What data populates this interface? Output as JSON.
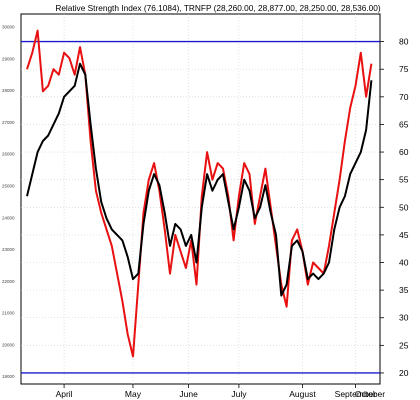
{
  "chart_data": {
    "type": "line",
    "title": "Relative Strength Index (76.1084), TRNFP (28,260.00, 28,877.00, 28,250.00, 28,536.00)",
    "right_axis": {
      "ticks": [
        20,
        25,
        30,
        35,
        40,
        45,
        50,
        55,
        60,
        65,
        70,
        75,
        80
      ],
      "range": [
        18,
        85
      ]
    },
    "left_axis": {
      "ticks": [
        "19000",
        "20000",
        "21000",
        "22000",
        "23000",
        "24000",
        "25000",
        "26000",
        "27000",
        "28000",
        "29000",
        "30000"
      ],
      "range": [
        18750,
        30400
      ]
    },
    "x_months": [
      "April",
      "May",
      "June",
      "July",
      "August",
      "September",
      "October"
    ],
    "x_range": [
      0,
      131
    ],
    "month_positions": [
      14,
      40,
      61,
      80,
      104,
      124,
      140
    ],
    "reference_lines": [
      80,
      20
    ],
    "grid": true,
    "series": [
      {
        "color": "#e81010",
        "axis": "right",
        "x": [
          0,
          2,
          4,
          6,
          8,
          10,
          12,
          14,
          16,
          18,
          20,
          22,
          24,
          26,
          28,
          30,
          32,
          34,
          36,
          38,
          40,
          42,
          44,
          46,
          48,
          50,
          52,
          54,
          56,
          58,
          60,
          62,
          64,
          66,
          68,
          70,
          72,
          74,
          76,
          78,
          80,
          82,
          84,
          86,
          88,
          90,
          92,
          94,
          96,
          98,
          100,
          102,
          104,
          106,
          108,
          110,
          112,
          114,
          116,
          118,
          120,
          122,
          124,
          126,
          128,
          130
        ],
        "values": [
          75,
          78,
          82,
          71,
          72,
          75,
          74,
          78,
          77,
          74,
          79,
          74,
          62,
          53,
          49,
          46,
          43,
          38,
          33,
          27,
          23,
          36,
          49,
          55,
          58,
          53,
          46,
          38,
          45,
          42,
          39,
          44,
          36,
          52,
          60,
          55,
          58,
          57,
          52,
          44,
          52,
          58,
          56,
          47,
          52,
          57,
          50,
          43,
          36,
          32,
          44,
          46,
          42,
          36,
          40,
          39,
          38,
          43,
          49,
          55,
          62,
          68,
          72,
          78,
          70,
          76
        ]
      },
      {
        "color": "#000000",
        "axis": "right",
        "x": [
          0,
          2,
          4,
          6,
          8,
          10,
          12,
          14,
          16,
          18,
          20,
          22,
          24,
          26,
          28,
          30,
          32,
          34,
          36,
          38,
          40,
          42,
          44,
          46,
          48,
          50,
          52,
          54,
          56,
          58,
          60,
          62,
          64,
          66,
          68,
          70,
          72,
          74,
          76,
          78,
          80,
          82,
          84,
          86,
          88,
          90,
          92,
          94,
          96,
          98,
          100,
          102,
          104,
          106,
          108,
          110,
          112,
          114,
          116,
          118,
          120,
          122,
          124,
          126,
          128,
          130
        ],
        "values": [
          52,
          56,
          60,
          62,
          63,
          65,
          67,
          70,
          71,
          72,
          76,
          74,
          65,
          57,
          51,
          48,
          46,
          45,
          44,
          41,
          37,
          38,
          47,
          53,
          56,
          54,
          49,
          43,
          47,
          46,
          43,
          45,
          40,
          50,
          56,
          53,
          55,
          56,
          51,
          46,
          50,
          55,
          53,
          48,
          50,
          54,
          49,
          45,
          34,
          36,
          43,
          44,
          42,
          37,
          38,
          37,
          38,
          40,
          46,
          50,
          52,
          56,
          58,
          60,
          64,
          73
        ]
      }
    ]
  }
}
